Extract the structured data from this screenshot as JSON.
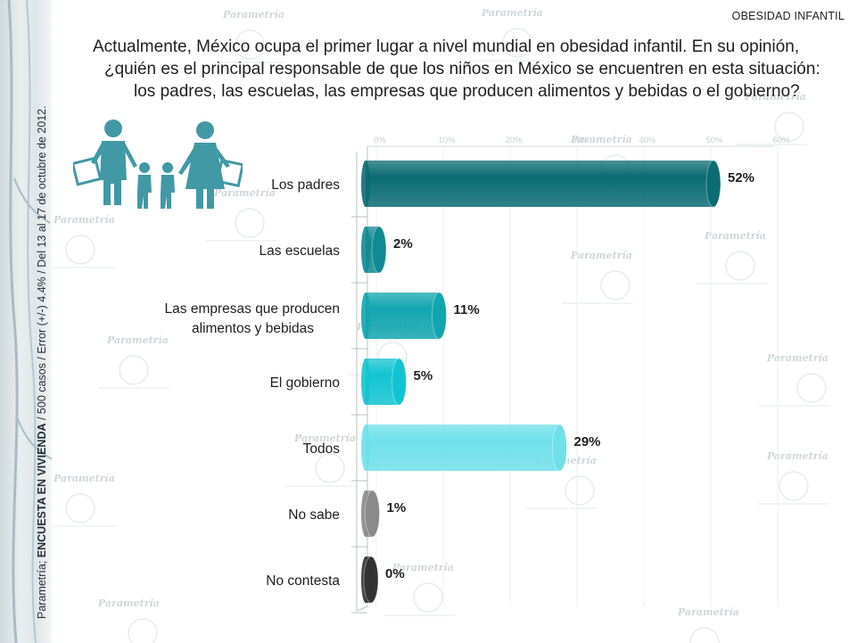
{
  "topic": "OBESIDAD INFANTIL",
  "question": {
    "line1": "Actualmente, México ocupa el primer lugar a nivel mundial en obesidad infantil. En su opinión,",
    "line2": "¿quién es el principal responsable de que los niños en México se encuentren en esta situación:",
    "line3": "los padres, las escuelas, las empresas que producen alimentos y bebidas o el gobierno?"
  },
  "side_caption": {
    "prefix": "Parametría; ",
    "survey": "ENCUESTA EN VIVIENDA",
    "suffix": " / 500 casos / Error (+/-) 4.4% / Del 13 al 17 de octubre de 2012."
  },
  "watermark_text": "Parametría",
  "colors": {
    "dark_teal": "#0b6c73",
    "teal": "#128a93",
    "cyan": "#12c4d1",
    "light_cyan": "#6fe0ea",
    "gray": "#8a8a8a",
    "dark": "#333333"
  },
  "chart_data": {
    "type": "bar",
    "orientation": "horizontal",
    "categories": [
      "Los padres",
      "Las escuelas",
      "Las empresas que producen alimentos y bebidas",
      "El gobierno",
      "Todos",
      "No sabe",
      "No contesta"
    ],
    "category_lines": [
      [
        "Los padres"
      ],
      [
        "Las escuelas"
      ],
      [
        "Las empresas que producen",
        "alimentos y bebidas"
      ],
      [
        "El gobierno"
      ],
      [
        "Todos"
      ],
      [
        "No sabe"
      ],
      [
        "No contesta"
      ]
    ],
    "values": [
      52,
      2,
      11,
      5,
      29,
      1,
      0
    ],
    "value_labels": [
      "52%",
      "2%",
      "11%",
      "5%",
      "29%",
      "1%",
      "0%"
    ],
    "bar_colors": [
      "#0b6c73",
      "#128a93",
      "#12a5b0",
      "#12c4d1",
      "#6fe0ea",
      "#8a8a8a",
      "#333333"
    ],
    "x_ticks": [
      "0%",
      "10%",
      "20%",
      "30%",
      "40%",
      "50%",
      "60%"
    ],
    "xlim": [
      0,
      60
    ],
    "unit": "%",
    "title": "",
    "xlabel": "",
    "ylabel": "",
    "grid": true,
    "legend": "none"
  }
}
